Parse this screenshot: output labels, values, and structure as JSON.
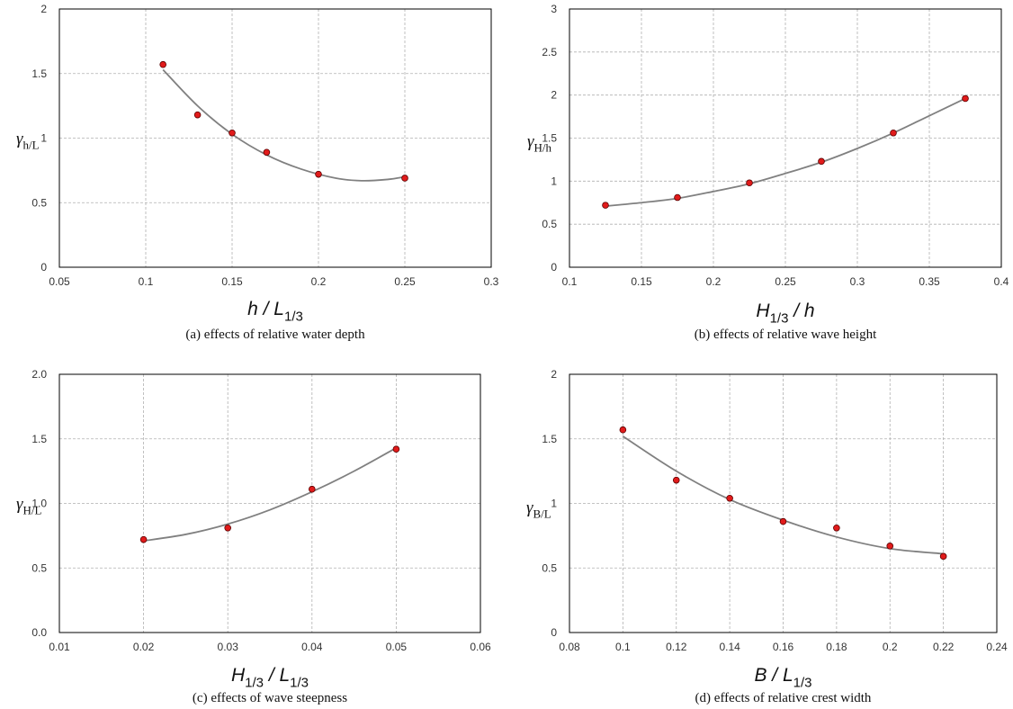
{
  "chart_data": [
    {
      "id": "a",
      "type": "scatter",
      "caption": "(a) effects of relative water depth",
      "xlabel": {
        "base": "h / L",
        "sub": "1/3"
      },
      "ylabel": {
        "base": "γ",
        "sub": "h/L"
      },
      "xlim": [
        0.05,
        0.3
      ],
      "ylim": [
        0,
        2
      ],
      "xticks": [
        "0.05",
        "0.1",
        "0.15",
        "0.2",
        "0.25",
        "0.3"
      ],
      "yticks": [
        "0",
        "0.5",
        "1",
        "1.5",
        "2"
      ],
      "points": {
        "x": [
          0.11,
          0.13,
          0.15,
          0.17,
          0.2,
          0.25
        ],
        "y": [
          1.57,
          1.18,
          1.04,
          0.89,
          0.72,
          0.69
        ]
      },
      "trendline": {
        "x": [
          0.11,
          0.13,
          0.15,
          0.17,
          0.19,
          0.21,
          0.225,
          0.24,
          0.25
        ],
        "y": [
          1.53,
          1.25,
          1.03,
          0.87,
          0.76,
          0.69,
          0.67,
          0.68,
          0.7
        ]
      }
    },
    {
      "id": "b",
      "type": "scatter",
      "caption": "(b) effects of relative wave height",
      "xlabel": {
        "base": "H",
        "sub": "1/3",
        "tail": " / h"
      },
      "ylabel": {
        "base": "γ",
        "sub": "H/h"
      },
      "xlim": [
        0.1,
        0.4
      ],
      "ylim": [
        0,
        3
      ],
      "xticks": [
        "0.1",
        "0.15",
        "0.2",
        "0.25",
        "0.3",
        "0.35",
        "0.4"
      ],
      "yticks": [
        "0",
        "0.5",
        "1",
        "1.5",
        "2",
        "2.5",
        "3"
      ],
      "points": {
        "x": [
          0.125,
          0.175,
          0.225,
          0.275,
          0.325,
          0.375
        ],
        "y": [
          0.72,
          0.81,
          0.98,
          1.23,
          1.56,
          1.96
        ]
      },
      "trendline": {
        "x": [
          0.125,
          0.15,
          0.175,
          0.2,
          0.225,
          0.25,
          0.275,
          0.3,
          0.325,
          0.35,
          0.375
        ],
        "y": [
          0.71,
          0.75,
          0.8,
          0.88,
          0.97,
          1.09,
          1.22,
          1.38,
          1.56,
          1.76,
          1.96
        ]
      }
    },
    {
      "id": "c",
      "type": "scatter",
      "caption": "(c) effects of wave steepness",
      "xlabel": {
        "base": "H",
        "sub": "1/3",
        "mid": " / L",
        "sub2": "1/3"
      },
      "ylabel": {
        "base": "γ",
        "sub": "H/L"
      },
      "xlim": [
        0.01,
        0.06
      ],
      "ylim": [
        0,
        2
      ],
      "xticks": [
        "0.01",
        "0.02",
        "0.03",
        "0.04",
        "0.05",
        "0.06"
      ],
      "yticks": [
        "0.0",
        "0.5",
        "1.0",
        "1.5",
        "2.0"
      ],
      "points": {
        "x": [
          0.02,
          0.03,
          0.04,
          0.05
        ],
        "y": [
          0.72,
          0.81,
          1.11,
          1.42
        ]
      },
      "trendline": {
        "x": [
          0.02,
          0.025,
          0.03,
          0.035,
          0.04,
          0.045,
          0.05
        ],
        "y": [
          0.71,
          0.76,
          0.84,
          0.95,
          1.09,
          1.25,
          1.43
        ]
      }
    },
    {
      "id": "d",
      "type": "scatter",
      "caption": "(d) effects of relative crest width",
      "xlabel": {
        "base": "B / L",
        "sub": "1/3"
      },
      "ylabel": {
        "base": "γ",
        "sub": "B/L"
      },
      "xlim": [
        0.08,
        0.24
      ],
      "ylim": [
        0,
        2
      ],
      "xticks": [
        "0.08",
        "0.1",
        "0.12",
        "0.14",
        "0.16",
        "0.18",
        "0.2",
        "0.22",
        "0.24"
      ],
      "yticks": [
        "0",
        "0.5",
        "1",
        "1.5",
        "2"
      ],
      "points": {
        "x": [
          0.1,
          0.12,
          0.14,
          0.16,
          0.18,
          0.2,
          0.22
        ],
        "y": [
          1.57,
          1.18,
          1.04,
          0.86,
          0.81,
          0.67,
          0.59
        ]
      },
      "trendline": {
        "x": [
          0.1,
          0.12,
          0.14,
          0.16,
          0.18,
          0.2,
          0.22
        ],
        "y": [
          1.52,
          1.25,
          1.03,
          0.87,
          0.74,
          0.65,
          0.61
        ]
      }
    }
  ]
}
